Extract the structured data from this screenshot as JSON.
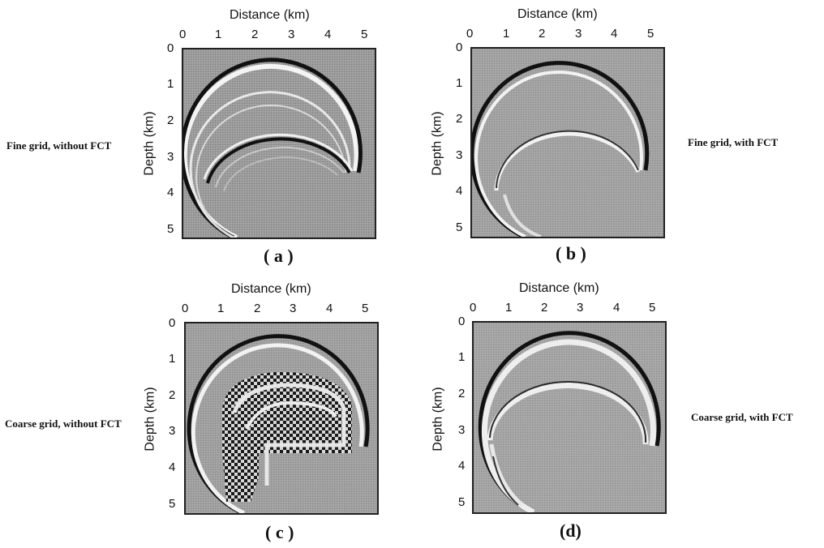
{
  "panels": [
    {
      "letter": "( a )",
      "side_label": "Fine grid, without FCT",
      "xlabel": "Distance (km)",
      "ylabel": "Depth (km)",
      "x_ticks": [
        "0",
        "1",
        "2",
        "3",
        "4",
        "5"
      ],
      "y_ticks": [
        "0",
        "1",
        "2",
        "3",
        "4",
        "5"
      ]
    },
    {
      "letter": "( b )",
      "side_label": "Fine grid, with FCT",
      "xlabel": "Distance (km)",
      "ylabel": "Depth (km)",
      "x_ticks": [
        "0",
        "1",
        "2",
        "3",
        "4",
        "5"
      ],
      "y_ticks": [
        "0",
        "1",
        "2",
        "3",
        "4",
        "5"
      ]
    },
    {
      "letter": "( c )",
      "side_label": "Coarse grid, without FCT",
      "xlabel": "Distance (km)",
      "ylabel": "Depth (km)",
      "x_ticks": [
        "0",
        "1",
        "2",
        "3",
        "4",
        "5"
      ],
      "y_ticks": [
        "0",
        "1",
        "2",
        "3",
        "4",
        "5"
      ]
    },
    {
      "letter": "(d)",
      "side_label": "Coarse grid, with FCT",
      "xlabel": "Distance (km)",
      "ylabel": "Depth (km)",
      "x_ticks": [
        "0",
        "1",
        "2",
        "3",
        "4",
        "5"
      ],
      "y_ticks": [
        "0",
        "1",
        "2",
        "3",
        "4",
        "5"
      ]
    }
  ],
  "colors": {
    "background_gray": "#9a9a9a",
    "wavefront_dark": "#111111",
    "wavefront_light": "#f2f2f2"
  }
}
